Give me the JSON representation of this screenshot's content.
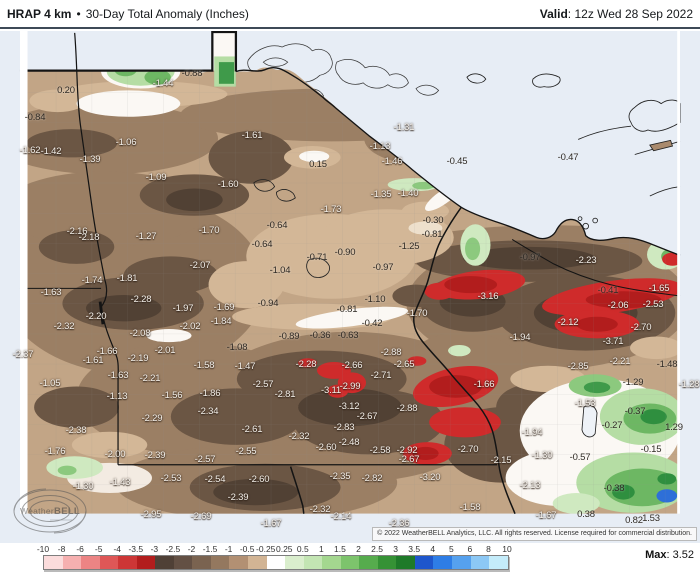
{
  "header": {
    "title_main": "HRAP 4 km",
    "title_sep": "•",
    "title_sub": "30-Day Total Anomaly (Inches)",
    "valid_label": "Valid",
    "valid_value": ": 12z Wed 28 Sep 2022"
  },
  "footer": {
    "copyright": "© 2022 WeatherBELL Analytics, LLC. All rights reserved. License required for commercial distribution.",
    "max_label": "Max",
    "max_value": ": 3.52"
  },
  "watermark": {
    "brand_prefix": "Weather",
    "brand_suffix": "BELL"
  },
  "colorbar": {
    "boundaries": [
      "-10",
      "-8",
      "-6",
      "-5",
      "-4",
      "-3.5",
      "-3",
      "-2.5",
      "-2",
      "-1.5",
      "-1",
      "-0.5",
      "-0.25",
      "0.25",
      "0.5",
      "1",
      "1.5",
      "2",
      "2.5",
      "3",
      "3.5",
      "4",
      "5",
      "6",
      "8",
      "10"
    ],
    "segment_colors": [
      "#fbdcdc",
      "#f6b0b0",
      "#ec8484",
      "#df5757",
      "#cd3636",
      "#b21d1d",
      "#4f4036",
      "#635044",
      "#7a6350",
      "#94785f",
      "#b29073",
      "#d2b494",
      "#ffffff",
      "#daeecd",
      "#c3e5b3",
      "#a4d78f",
      "#7dc46c",
      "#56ac4d",
      "#359235",
      "#1e7a29",
      "#1e56cc",
      "#2e7de6",
      "#56a1ee",
      "#8cc8f5",
      "#c4ecfa"
    ]
  },
  "map": {
    "labels": [
      [
        "0.20",
        66,
        91,
        "d"
      ],
      [
        "-0.84",
        35,
        118,
        "d"
      ],
      [
        "-1.44",
        163,
        84,
        "l"
      ],
      [
        "-0.88",
        192,
        74,
        "d"
      ],
      [
        "-1.62",
        30,
        151,
        "l"
      ],
      [
        "-1.42",
        51,
        152,
        "l"
      ],
      [
        "-1.39",
        90,
        160,
        "l"
      ],
      [
        "-1.06",
        126,
        143,
        "l"
      ],
      [
        "-1.09",
        156,
        178,
        "l"
      ],
      [
        "-1.60",
        228,
        185,
        "l"
      ],
      [
        "-1.61",
        252,
        136,
        "l"
      ],
      [
        "0.15",
        318,
        165,
        "d"
      ],
      [
        "-1.13",
        380,
        147,
        "l"
      ],
      [
        "-1.46",
        392,
        162,
        "l"
      ],
      [
        "-1.31",
        404,
        128,
        "l"
      ],
      [
        "-0.45",
        457,
        162,
        "d"
      ],
      [
        "-1.35",
        381,
        195,
        "l"
      ],
      [
        "-1.40",
        408,
        194,
        "l"
      ],
      [
        "-1.73",
        331,
        210,
        "l"
      ],
      [
        "-0.47",
        568,
        158,
        "d"
      ],
      [
        "-0.30",
        433,
        221,
        "d"
      ],
      [
        "-0.97",
        530,
        258,
        "d"
      ],
      [
        "-2.23",
        586,
        261,
        "l"
      ],
      [
        "-0.81",
        432,
        235,
        "d"
      ],
      [
        "-1.25",
        409,
        247,
        "d"
      ],
      [
        "-0.64",
        277,
        226,
        "d"
      ],
      [
        "-0.64",
        262,
        245,
        "d"
      ],
      [
        "-0.90",
        345,
        253,
        "d"
      ],
      [
        "-0.71",
        317,
        258,
        "d"
      ],
      [
        "-1.04",
        280,
        271,
        "d"
      ],
      [
        "-0.97",
        383,
        268,
        "d"
      ],
      [
        "-2.16",
        77,
        232,
        "l"
      ],
      [
        "-2.18",
        89,
        238,
        "l"
      ],
      [
        "-1.27",
        146,
        237,
        "l"
      ],
      [
        "-1.70",
        209,
        231,
        "l"
      ],
      [
        "-2.07",
        200,
        266,
        "l"
      ],
      [
        "-1.74",
        92,
        281,
        "l"
      ],
      [
        "-1.81",
        127,
        279,
        "l"
      ],
      [
        "-1.63",
        51,
        293,
        "l"
      ],
      [
        "-2.28",
        141,
        300,
        "l"
      ],
      [
        "-1.97",
        183,
        309,
        "l"
      ],
      [
        "-1.69",
        224,
        308,
        "l"
      ],
      [
        "-2.20",
        96,
        317,
        "l"
      ],
      [
        "-2.32",
        64,
        327,
        "l"
      ],
      [
        "-2.02",
        190,
        327,
        "l"
      ],
      [
        "-1.84",
        221,
        322,
        "l"
      ],
      [
        "-2.08",
        140,
        334,
        "l"
      ],
      [
        "-2.37",
        23,
        355,
        "l"
      ],
      [
        "-1.66",
        107,
        352,
        "l"
      ],
      [
        "-1.61",
        93,
        361,
        "l"
      ],
      [
        "-2.01",
        165,
        351,
        "l"
      ],
      [
        "-2.19",
        138,
        359,
        "l"
      ],
      [
        "-1.58",
        204,
        366,
        "l"
      ],
      [
        "-0.94",
        268,
        304,
        "d"
      ],
      [
        "-1.10",
        375,
        300,
        "d"
      ],
      [
        "-0.81",
        347,
        310,
        "d"
      ],
      [
        "-1.70",
        417,
        314,
        "l"
      ],
      [
        "-0.42",
        372,
        324,
        "d"
      ],
      [
        "-0.89",
        289,
        337,
        "d"
      ],
      [
        "-0.36",
        320,
        336,
        "d"
      ],
      [
        "-0.63",
        348,
        336,
        "d"
      ],
      [
        "-1.08",
        237,
        348,
        "d"
      ],
      [
        "-1.47",
        245,
        367,
        "l"
      ],
      [
        "-2.88",
        391,
        353,
        "l"
      ],
      [
        "-2.28",
        306,
        365,
        "l"
      ],
      [
        "-2.66",
        352,
        366,
        "l"
      ],
      [
        "-2.65",
        404,
        365,
        "l"
      ],
      [
        "-2.71",
        381,
        376,
        "l"
      ],
      [
        "-3.16",
        488,
        297,
        "l"
      ],
      [
        "-2.06",
        618,
        306,
        "l"
      ],
      [
        "-2.53",
        653,
        305,
        "l"
      ],
      [
        "-0.41",
        608,
        291,
        "d"
      ],
      [
        "-1.65",
        659,
        289,
        "l"
      ],
      [
        "-2.12",
        568,
        323,
        "l"
      ],
      [
        "-2.70",
        641,
        328,
        "l"
      ],
      [
        "-1.94",
        520,
        338,
        "l"
      ],
      [
        "-3.71",
        613,
        342,
        "l"
      ],
      [
        "-2.21",
        620,
        362,
        "l"
      ],
      [
        "-2.85",
        578,
        367,
        "l"
      ],
      [
        "-1.48",
        667,
        365,
        "d"
      ],
      [
        "-1.63",
        118,
        376,
        "l"
      ],
      [
        "-2.21",
        150,
        379,
        "l"
      ],
      [
        "-1.05",
        50,
        384,
        "l"
      ],
      [
        "-1.13",
        117,
        397,
        "l"
      ],
      [
        "-1.56",
        172,
        396,
        "l"
      ],
      [
        "-1.86",
        210,
        394,
        "l"
      ],
      [
        "-2.34",
        208,
        412,
        "l"
      ],
      [
        "-2.29",
        152,
        419,
        "l"
      ],
      [
        "-2.38",
        76,
        431,
        "l"
      ],
      [
        "-1.76",
        55,
        452,
        "l"
      ],
      [
        "-2.00",
        115,
        455,
        "l"
      ],
      [
        "-2.39",
        155,
        456,
        "l"
      ],
      [
        "-2.57",
        205,
        460,
        "l"
      ],
      [
        "-1.30",
        83,
        487,
        "l"
      ],
      [
        "-1.43",
        120,
        483,
        "l"
      ],
      [
        "-2.53",
        171,
        479,
        "l"
      ],
      [
        "-2.54",
        215,
        480,
        "l"
      ],
      [
        "-2.95",
        151,
        515,
        "l"
      ],
      [
        "-2.69",
        201,
        517,
        "l"
      ],
      [
        "-2.57",
        263,
        385,
        "l"
      ],
      [
        "-2.81",
        285,
        395,
        "l"
      ],
      [
        "-3.11",
        331,
        391,
        "l"
      ],
      [
        "-2.99",
        350,
        387,
        "l"
      ],
      [
        "-3.12",
        349,
        407,
        "l"
      ],
      [
        "-2.67",
        367,
        417,
        "l"
      ],
      [
        "-2.88",
        407,
        409,
        "l"
      ],
      [
        "-2.61",
        252,
        430,
        "l"
      ],
      [
        "-2.83",
        344,
        428,
        "l"
      ],
      [
        "-2.32",
        299,
        437,
        "l"
      ],
      [
        "-2.48",
        349,
        443,
        "l"
      ],
      [
        "-2.60",
        326,
        448,
        "l"
      ],
      [
        "-2.55",
        246,
        452,
        "l"
      ],
      [
        "-2.58",
        380,
        451,
        "l"
      ],
      [
        "-2.92",
        407,
        451,
        "l"
      ],
      [
        "-2.67",
        409,
        460,
        "l"
      ],
      [
        "-2.60",
        259,
        480,
        "l"
      ],
      [
        "-2.35",
        340,
        477,
        "l"
      ],
      [
        "-2.82",
        372,
        479,
        "l"
      ],
      [
        "-3.20",
        430,
        478,
        "l"
      ],
      [
        "-2.70",
        468,
        450,
        "l"
      ],
      [
        "-2.39",
        238,
        498,
        "l"
      ],
      [
        "-2.32",
        320,
        510,
        "l"
      ],
      [
        "-2.14",
        341,
        517,
        "l"
      ],
      [
        "-1.67",
        271,
        524,
        "l"
      ],
      [
        "-2.36",
        399,
        524,
        "l"
      ],
      [
        "-1.28",
        689,
        385,
        "l"
      ],
      [
        "-1.66",
        484,
        385,
        "l"
      ],
      [
        "-1.29",
        633,
        383,
        "d"
      ],
      [
        "-1.53",
        585,
        404,
        "l"
      ],
      [
        "-0.37",
        635,
        412,
        "d"
      ],
      [
        "-0.27",
        612,
        426,
        "d"
      ],
      [
        "1.29",
        674,
        428,
        "d"
      ],
      [
        "-1.94",
        532,
        433,
        "l"
      ],
      [
        "-0.15",
        651,
        450,
        "d"
      ],
      [
        "-1.30",
        542,
        456,
        "l"
      ],
      [
        "-0.57",
        580,
        458,
        "d"
      ],
      [
        "-2.15",
        501,
        461,
        "l"
      ],
      [
        "-2.13",
        530,
        486,
        "l"
      ],
      [
        "-0.38",
        614,
        489,
        "d"
      ],
      [
        "-1.67",
        546,
        516,
        "l"
      ],
      [
        "0.38",
        586,
        515,
        "d"
      ],
      [
        "0.82",
        634,
        521,
        "d"
      ],
      [
        "1.53",
        651,
        519,
        "d"
      ],
      [
        "-1.58",
        470,
        508,
        "l"
      ]
    ]
  }
}
